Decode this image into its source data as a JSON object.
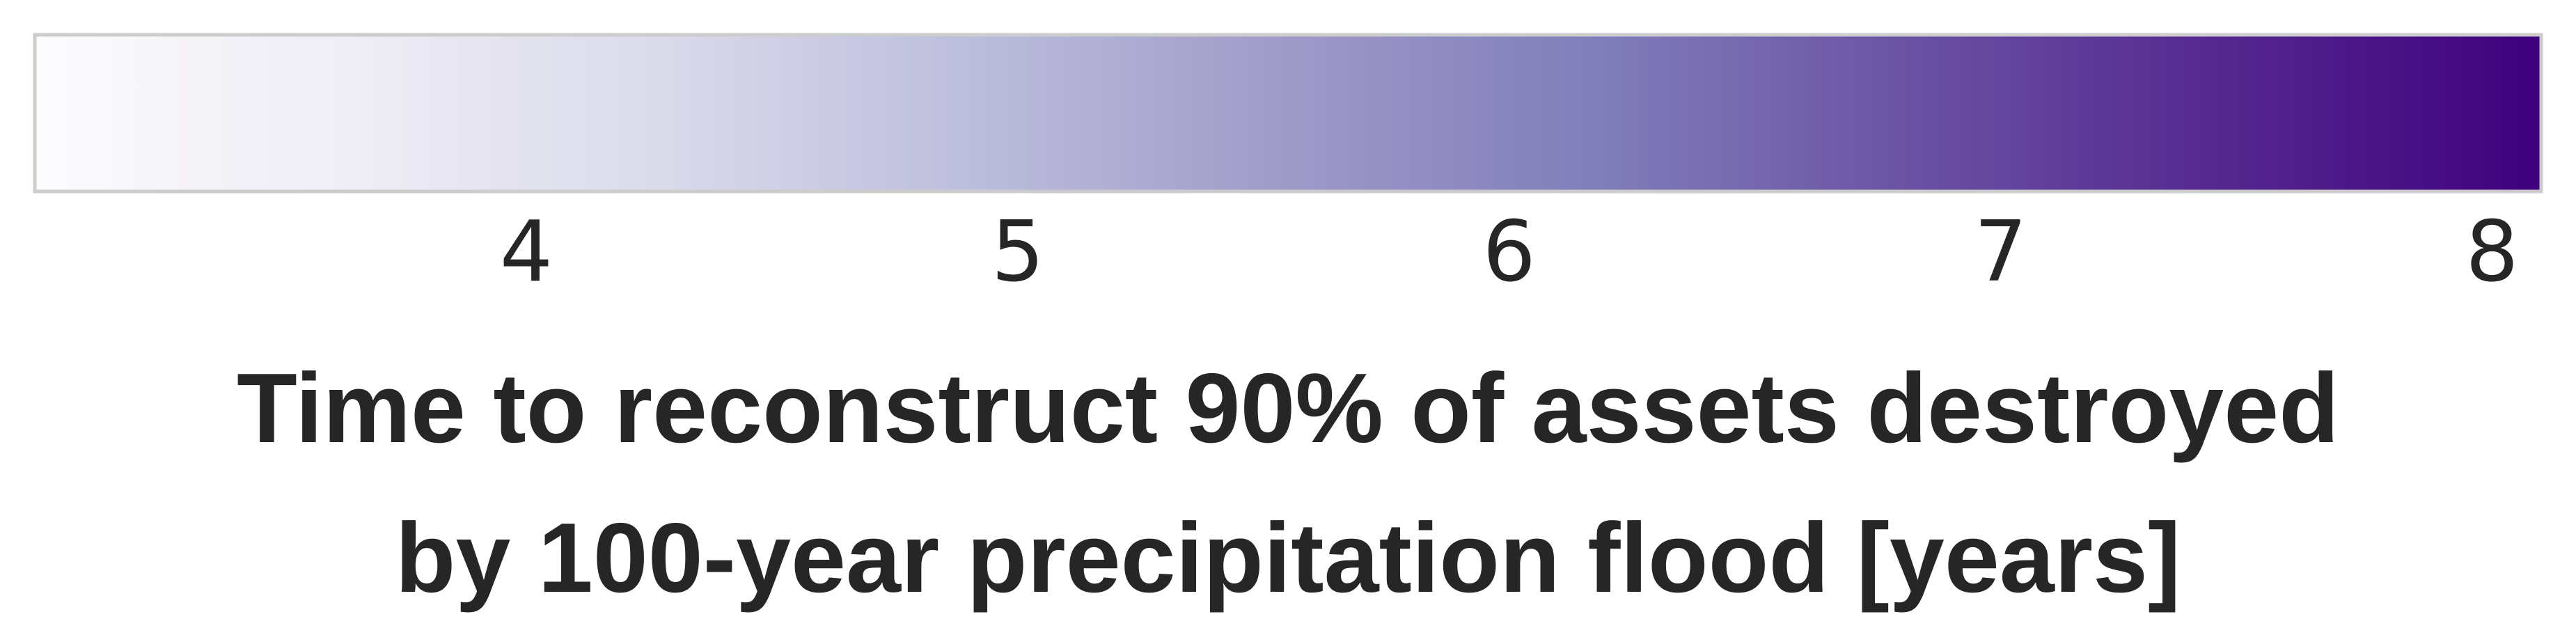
{
  "chart_data": {
    "type": "colorbar",
    "orientation": "horizontal",
    "colormap": "Purples",
    "range": [
      3.0,
      8.1
    ],
    "ticks": [
      4,
      5,
      6,
      7,
      8
    ],
    "tick_labels": [
      "4",
      "5",
      "6",
      "7",
      "8"
    ],
    "label_lines": [
      "Time to reconstruct 90% of assets destroyed",
      "by 100-year precipitation flood [years]"
    ],
    "colors": {
      "low": "#fcfbfd",
      "stops": [
        "#fcfbfd",
        "#efedf5",
        "#dadaeb",
        "#bcbddc",
        "#9e9ac8",
        "#807dba",
        "#6a51a3",
        "#54278f",
        "#3f007d"
      ],
      "outline": "#cccccc",
      "text": "#262626"
    }
  }
}
